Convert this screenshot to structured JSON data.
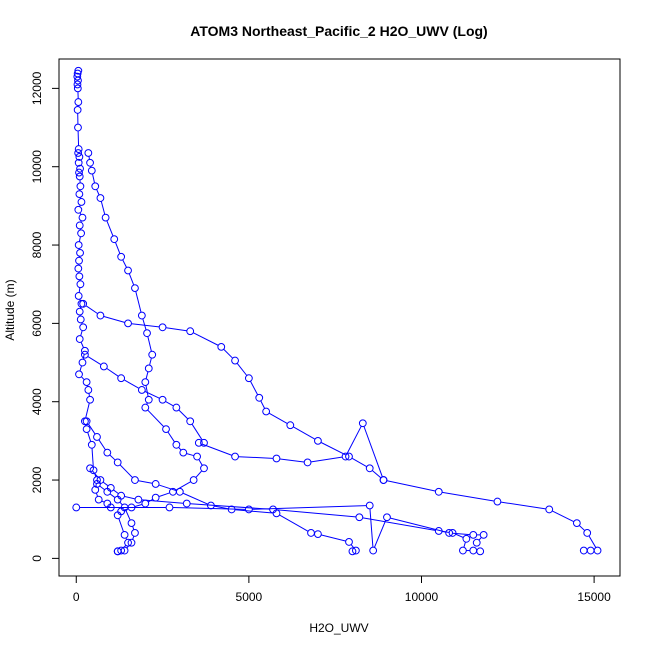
{
  "chart_data": {
    "type": "line",
    "title": "ATOM3 Northeast_Pacific_2 H2O_UWV (Log)",
    "xlabel": "H2O_UWV",
    "ylabel": "Altitude (m)",
    "xlim": [
      -500,
      15750
    ],
    "ylim": [
      -450,
      12750
    ],
    "xticks": [
      0,
      5000,
      10000,
      15000
    ],
    "yticks": [
      0,
      2000,
      4000,
      6000,
      8000,
      10000,
      12000
    ],
    "grid": false,
    "series": [
      {
        "color": "#0000ff",
        "marker": "open-circle",
        "points": [
          [
            60,
            12450
          ],
          [
            40,
            12380
          ],
          [
            30,
            12300
          ],
          [
            50,
            12200
          ],
          [
            35,
            12100
          ],
          [
            45,
            12000
          ],
          [
            60,
            11650
          ],
          [
            40,
            11450
          ],
          [
            50,
            11000
          ],
          [
            70,
            10450
          ],
          [
            55,
            10350
          ],
          [
            90,
            10250
          ],
          [
            70,
            10100
          ],
          [
            110,
            9950
          ],
          [
            80,
            9850
          ],
          [
            100,
            9750
          ],
          [
            120,
            9500
          ],
          [
            90,
            9300
          ],
          [
            150,
            9100
          ],
          [
            60,
            8900
          ],
          [
            180,
            8700
          ],
          [
            100,
            8500
          ],
          [
            140,
            8300
          ],
          [
            70,
            8000
          ],
          [
            110,
            7800
          ],
          [
            80,
            7600
          ],
          [
            60,
            7400
          ],
          [
            90,
            7200
          ],
          [
            120,
            7000
          ],
          [
            70,
            6700
          ],
          [
            150,
            6500
          ],
          [
            100,
            6300
          ],
          [
            130,
            6100
          ],
          [
            200,
            5900
          ],
          [
            100,
            5600
          ],
          [
            250,
            5300
          ],
          [
            180,
            5000
          ],
          [
            80,
            4700
          ],
          [
            300,
            4500
          ],
          [
            350,
            4300
          ],
          [
            400,
            4050
          ],
          [
            250,
            3500
          ],
          [
            300,
            3300
          ],
          [
            450,
            2900
          ],
          [
            500,
            2250
          ],
          [
            600,
            2000
          ],
          [
            550,
            1750
          ],
          [
            650,
            1500
          ],
          [
            900,
            1400
          ],
          [
            1000,
            1300
          ]
        ]
      },
      {
        "color": "#0000ff",
        "marker": "open-circle",
        "points": [
          [
            350,
            10350
          ],
          [
            400,
            10100
          ],
          [
            450,
            9900
          ],
          [
            550,
            9500
          ],
          [
            700,
            9200
          ],
          [
            850,
            8700
          ],
          [
            1100,
            8150
          ],
          [
            1300,
            7700
          ],
          [
            1500,
            7350
          ],
          [
            1700,
            6900
          ],
          [
            1900,
            6200
          ],
          [
            2050,
            5750
          ],
          [
            2200,
            5200
          ],
          [
            2100,
            4850
          ],
          [
            2000,
            4500
          ],
          [
            2100,
            4050
          ],
          [
            2000,
            3850
          ],
          [
            2600,
            3300
          ],
          [
            2900,
            2900
          ],
          [
            3100,
            2700
          ],
          [
            3500,
            2600
          ],
          [
            3700,
            2300
          ],
          [
            3400,
            2000
          ],
          [
            2800,
            1700
          ],
          [
            2300,
            1550
          ],
          [
            2000,
            1400
          ],
          [
            1600,
            1300
          ],
          [
            1300,
            1200
          ],
          [
            1200,
            1100
          ],
          [
            1400,
            600
          ],
          [
            1500,
            400
          ],
          [
            1300,
            200
          ],
          [
            1200,
            180
          ]
        ]
      },
      {
        "color": "#0000ff",
        "marker": "open-circle",
        "points": [
          [
            200,
            6500
          ],
          [
            700,
            6200
          ],
          [
            1500,
            6000
          ],
          [
            2500,
            5900
          ],
          [
            3300,
            5800
          ],
          [
            4200,
            5400
          ],
          [
            4600,
            5050
          ],
          [
            5000,
            4600
          ],
          [
            5300,
            4100
          ],
          [
            5500,
            3750
          ],
          [
            6200,
            3400
          ],
          [
            7000,
            3000
          ],
          [
            7900,
            2600
          ],
          [
            8500,
            2300
          ],
          [
            8900,
            2000
          ],
          [
            10500,
            1700
          ],
          [
            12200,
            1450
          ],
          [
            13700,
            1250
          ],
          [
            14500,
            900
          ],
          [
            14800,
            650
          ],
          [
            15100,
            200
          ],
          [
            14900,
            200
          ],
          [
            14700,
            200
          ]
        ]
      },
      {
        "color": "#0000ff",
        "marker": "open-circle",
        "points": [
          [
            250,
            5200
          ],
          [
            800,
            4900
          ],
          [
            1300,
            4600
          ],
          [
            1900,
            4300
          ],
          [
            2500,
            4050
          ],
          [
            2900,
            3850
          ],
          [
            3300,
            3500
          ],
          [
            3700,
            2950
          ],
          [
            3550,
            2950
          ],
          [
            4600,
            2600
          ],
          [
            5800,
            2550
          ],
          [
            6700,
            2450
          ],
          [
            7800,
            2600
          ],
          [
            8300,
            3450
          ],
          [
            8900,
            2000
          ]
        ]
      },
      {
        "color": "#0000ff",
        "marker": "open-circle",
        "points": [
          [
            300,
            3500
          ],
          [
            600,
            3100
          ],
          [
            900,
            2700
          ],
          [
            1200,
            2450
          ],
          [
            1700,
            2000
          ],
          [
            2300,
            1900
          ],
          [
            3000,
            1700
          ],
          [
            3900,
            1350
          ],
          [
            4500,
            1250
          ],
          [
            5800,
            1150
          ],
          [
            6800,
            650
          ],
          [
            7000,
            620
          ],
          [
            7900,
            420
          ],
          [
            8100,
            200
          ],
          [
            8000,
            180
          ]
        ]
      },
      {
        "color": "#0000ff",
        "marker": "open-circle",
        "points": [
          [
            400,
            2300
          ],
          [
            700,
            2000
          ],
          [
            1000,
            1800
          ],
          [
            1300,
            1600
          ],
          [
            1800,
            1500
          ],
          [
            3200,
            1400
          ],
          [
            5700,
            1250
          ],
          [
            8200,
            1050
          ],
          [
            10500,
            700
          ],
          [
            10900,
            650
          ],
          [
            11300,
            500
          ],
          [
            11200,
            200
          ],
          [
            11500,
            200
          ],
          [
            11700,
            180
          ]
        ]
      },
      {
        "color": "#0000ff",
        "marker": "open-circle",
        "points": [
          [
            0,
            1300
          ],
          [
            2700,
            1300
          ],
          [
            5000,
            1250
          ],
          [
            8500,
            1350
          ],
          [
            8600,
            200
          ],
          [
            9000,
            1050
          ],
          [
            10800,
            650
          ],
          [
            11500,
            600
          ],
          [
            11800,
            600
          ],
          [
            11600,
            400
          ]
        ]
      },
      {
        "color": "#0000ff",
        "marker": "open-circle",
        "points": [
          [
            600,
            1900
          ],
          [
            900,
            1700
          ],
          [
            1200,
            1500
          ],
          [
            1400,
            1300
          ],
          [
            1600,
            900
          ],
          [
            1700,
            650
          ],
          [
            1600,
            400
          ],
          [
            1400,
            200
          ],
          [
            1200,
            180
          ]
        ]
      }
    ]
  }
}
